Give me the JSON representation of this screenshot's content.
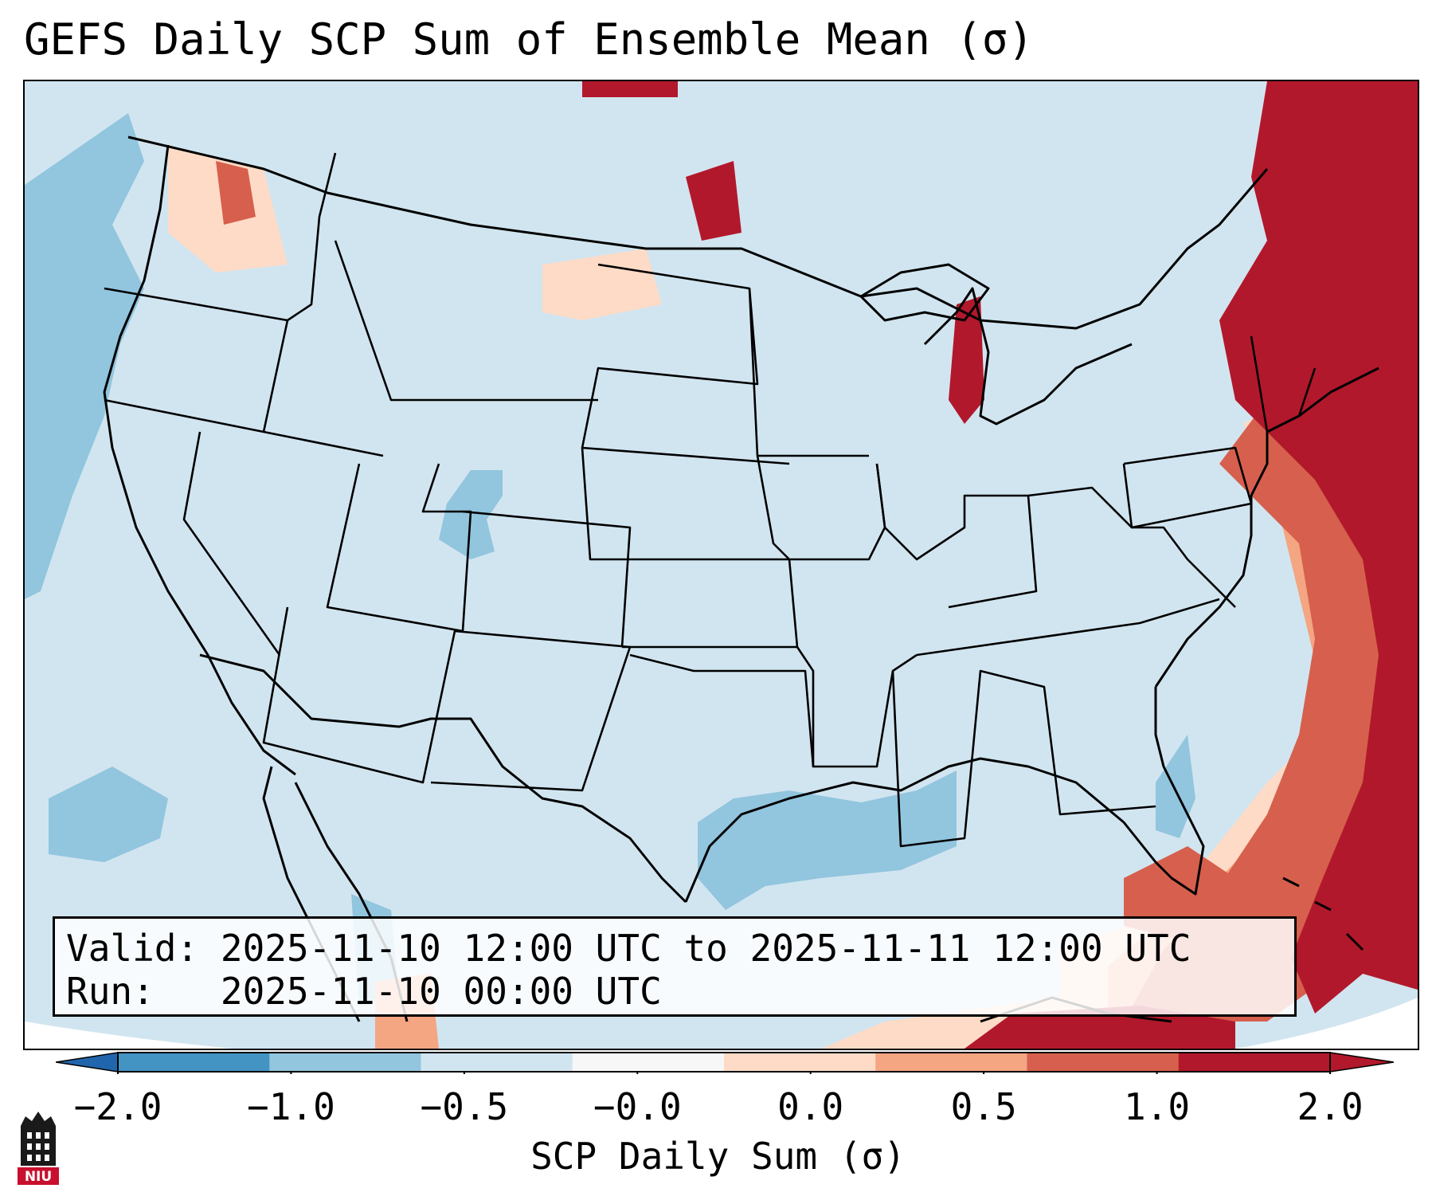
{
  "title": "GEFS Daily SCP Sum of Ensemble Mean (σ)",
  "info": {
    "valid_label": "Valid:",
    "valid_value": "2025-11-10 12:00 UTC to 2025-11-11 12:00 UTC",
    "run_label": "Run:",
    "run_value": "2025-11-10 00:00 UTC"
  },
  "colorbar": {
    "label": "SCP Daily Sum (σ)",
    "ticks": [
      "−2.0",
      "−1.0",
      "−0.5",
      "−0.0",
      "0.0",
      "0.5",
      "1.0",
      "2.0"
    ],
    "colors": [
      "#4393c3",
      "#92c5de",
      "#d1e5f0",
      "#f7f7f7",
      "#fddbc7",
      "#f4a582",
      "#d6604d",
      "#b2182b"
    ],
    "extend": "both",
    "under_color": "#2166ac",
    "over_color": "#b2182b"
  },
  "logo": {
    "text": "NIU",
    "icon": "niu-logo"
  },
  "map": {
    "projection": "Lambert conformal, CONUS",
    "basemap": "coastlines and state/province borders",
    "field_colors": {
      "background": "#d1e5f0",
      "negative": "#92c5de",
      "strong_positive": "#b2182b",
      "positive": "#d6604d",
      "weak_positive": "#f4a582",
      "slight_positive": "#fddbc7"
    }
  }
}
